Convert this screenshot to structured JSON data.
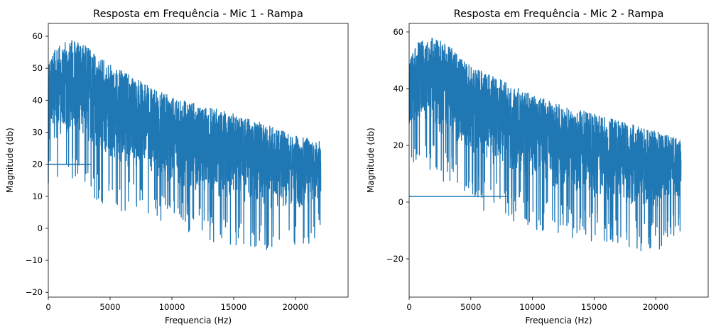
{
  "chart_data": [
    {
      "type": "line",
      "title": "Resposta em Frequência - Mic 1 - Rampa",
      "xlabel": "Frequencia (Hz)",
      "ylabel": "Magnitude (db)",
      "xlim": [
        0,
        24255
      ],
      "ylim": [
        -21.5,
        64
      ],
      "xticks": [
        0,
        5000,
        10000,
        15000,
        20000
      ],
      "xtick_labels": [
        "0",
        "5000",
        "10000",
        "15000",
        "20000"
      ],
      "yticks": [
        -20,
        -10,
        0,
        10,
        20,
        30,
        40,
        50,
        60
      ],
      "ytick_labels": [
        "−20",
        "−10",
        "0",
        "10",
        "20",
        "30",
        "40",
        "50",
        "60"
      ],
      "grid": false,
      "series": [
        {
          "color": "#1f77b4",
          "x_range": [
            0,
            22050
          ],
          "envelope_upper": [
            [
              0,
              51
            ],
            [
              500,
              57
            ],
            [
              2000,
              59
            ],
            [
              3000,
              57
            ],
            [
              5000,
              51
            ],
            [
              8000,
              45
            ],
            [
              10000,
              41
            ],
            [
              15000,
              36
            ],
            [
              20000,
              29
            ],
            [
              22050,
              27
            ]
          ],
          "envelope_lower": [
            [
              0,
              14
            ],
            [
              500,
              12
            ],
            [
              2000,
              15
            ],
            [
              4000,
              8
            ],
            [
              6000,
              4
            ],
            [
              8000,
              2
            ],
            [
              10000,
              -1
            ],
            [
              15000,
              -6
            ],
            [
              18000,
              -8
            ],
            [
              20000,
              -8
            ],
            [
              22050,
              -2
            ]
          ],
          "mirror_flat_level": 20,
          "mirror_flat_x_range": [
            0,
            3500
          ]
        }
      ]
    },
    {
      "type": "line",
      "title": "Resposta em Frequência - Mic 2 - Rampa",
      "xlabel": "Frequencia (Hz)",
      "ylabel": "Magnitude (db)",
      "xlim": [
        0,
        24255
      ],
      "ylim": [
        -33.5,
        63
      ],
      "xticks": [
        0,
        5000,
        10000,
        15000,
        20000
      ],
      "xtick_labels": [
        "0",
        "5000",
        "10000",
        "15000",
        "20000"
      ],
      "yticks": [
        -20,
        0,
        20,
        40,
        60
      ],
      "ytick_labels": [
        "−20",
        "0",
        "20",
        "40",
        "60"
      ],
      "grid": false,
      "series": [
        {
          "color": "#1f77b4",
          "x_range": [
            0,
            22050
          ],
          "envelope_upper": [
            [
              0,
              49
            ],
            [
              500,
              56
            ],
            [
              2000,
              58
            ],
            [
              3000,
              56
            ],
            [
              5000,
              48
            ],
            [
              8000,
              42
            ],
            [
              10000,
              38
            ],
            [
              15000,
              31
            ],
            [
              20000,
              25
            ],
            [
              22050,
              22
            ]
          ],
          "envelope_lower": [
            [
              0,
              10
            ],
            [
              500,
              13
            ],
            [
              2000,
              8
            ],
            [
              4000,
              2
            ],
            [
              6000,
              -3
            ],
            [
              8000,
              -6
            ],
            [
              10000,
              -10
            ],
            [
              15000,
              -14
            ],
            [
              18000,
              -17
            ],
            [
              20000,
              -18
            ],
            [
              22050,
              -10
            ]
          ],
          "mirror_flat_level": 2,
          "mirror_flat_x_range": [
            0,
            8000
          ]
        }
      ]
    }
  ]
}
